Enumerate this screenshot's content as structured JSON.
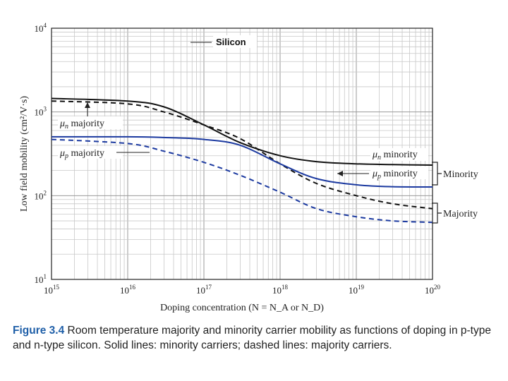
{
  "chart_data": {
    "type": "line",
    "title": "Silicon",
    "xlabel": "Doping concentration (N = N_A or N_D)",
    "ylabel": "Low field mobility (cm²/V·s)",
    "xscale": "log",
    "yscale": "log",
    "xlim": [
      1000000000000000.0,
      1e+20
    ],
    "ylim": [
      10,
      10000
    ],
    "x_ticks": [
      {
        "base": "10",
        "exp": "15"
      },
      {
        "base": "10",
        "exp": "16"
      },
      {
        "base": "10",
        "exp": "17"
      },
      {
        "base": "10",
        "exp": "18"
      },
      {
        "base": "10",
        "exp": "19"
      },
      {
        "base": "10",
        "exp": "20"
      }
    ],
    "y_ticks": [
      {
        "base": "10",
        "exp": "1"
      },
      {
        "base": "10",
        "exp": "2"
      },
      {
        "base": "10",
        "exp": "3"
      },
      {
        "base": "10",
        "exp": "4"
      }
    ],
    "grid": true,
    "series": [
      {
        "name": "μn minority",
        "color": "#111111",
        "dash": false,
        "x": [
          1000000000000000.0,
          1e+16,
          3e+16,
          1e+17,
          3e+17,
          1e+18,
          3e+18,
          1e+19,
          3e+19,
          1e+20
        ],
        "y": [
          1450,
          1350,
          1150,
          700,
          430,
          300,
          255,
          240,
          235,
          232
        ]
      },
      {
        "name": "μn majority",
        "color": "#111111",
        "dash": true,
        "x": [
          1000000000000000.0,
          1e+16,
          3e+16,
          1e+17,
          3e+17,
          1e+18,
          3e+18,
          1e+19,
          3e+19,
          1e+20
        ],
        "y": [
          1350,
          1250,
          1000,
          700,
          480,
          240,
          140,
          100,
          80,
          70
        ]
      },
      {
        "name": "μp minority",
        "color": "#1c3aa0",
        "dash": false,
        "x": [
          1000000000000000.0,
          1e+16,
          3e+16,
          1e+17,
          3e+17,
          1e+18,
          3e+18,
          1e+19,
          3e+19,
          1e+20
        ],
        "y": [
          505,
          505,
          495,
          470,
          400,
          240,
          160,
          135,
          128,
          127
        ]
      },
      {
        "name": "μp majority",
        "color": "#1c3aa0",
        "dash": true,
        "x": [
          1000000000000000.0,
          1e+16,
          3e+16,
          1e+17,
          3e+17,
          1e+18,
          3e+18,
          1e+19,
          3e+19,
          1e+20
        ],
        "y": [
          470,
          420,
          340,
          250,
          175,
          110,
          70,
          56,
          50,
          48
        ]
      }
    ],
    "annotations": {
      "mu_n_minority": {
        "symbol": "μ",
        "sub": "n",
        "text": "minority"
      },
      "mu_n_majority": {
        "symbol": "μ",
        "sub": "n",
        "text": "majority"
      },
      "mu_p_minority": {
        "symbol": "μ",
        "sub": "p",
        "text": "minority"
      },
      "mu_p_majority": {
        "symbol": "μ",
        "sub": "p",
        "text": "majority"
      },
      "minority_group": "Minority",
      "majority_group": "Majority"
    }
  },
  "caption": {
    "figure": "Figure 3.4",
    "text": " Room temperature majority and minority carrier mobility as functions of doping in p-type and n-type silicon. Solid lines: minority carriers; dashed lines: majority carriers."
  }
}
